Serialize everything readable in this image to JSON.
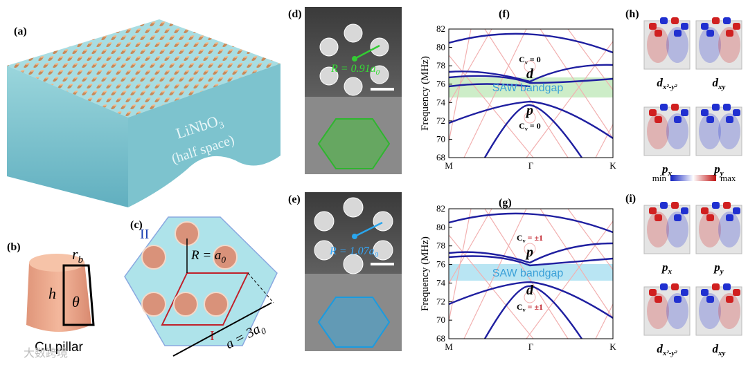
{
  "panels": {
    "a": {
      "label": "(a)",
      "material": {
        "base": "LiNbO",
        "sub": "3"
      },
      "note": "(half space)"
    },
    "b": {
      "label": "(b)",
      "radius": {
        "base": "r",
        "sub": "b"
      },
      "height": "h",
      "angle": "θ",
      "caption": "Cu pillar"
    },
    "c": {
      "label": "(c)",
      "region_outer": "II",
      "region_inner": "I",
      "radius": {
        "base": "R = a",
        "sub": "0"
      },
      "lattice": {
        "base": "a = 3a",
        "sub": "0"
      }
    },
    "d": {
      "label": "(d)",
      "radius": {
        "base": "R = 0.91a",
        "sub": "0"
      }
    },
    "e": {
      "label": "(e)",
      "radius": {
        "base": "R = 1.07a",
        "sub": "0"
      }
    },
    "f": {
      "label": "(f)",
      "y_label": "Frequency (MHz)",
      "yticks": [
        68,
        70,
        72,
        74,
        76,
        78,
        80,
        82
      ],
      "xticks": [
        "M",
        "Γ",
        "K"
      ],
      "gap": "SAW bandgap",
      "upper_band": "d",
      "lower_band": "p",
      "upper_chern": {
        "base": "C",
        "sub": "v",
        "value": " = 0"
      },
      "lower_chern": {
        "base": "C",
        "sub": "v",
        "value": " = 0"
      }
    },
    "g": {
      "label": "(g)",
      "y_label": "Frequency (MHz)",
      "yticks": [
        68,
        70,
        72,
        74,
        76,
        78,
        80,
        82
      ],
      "xticks": [
        "M",
        "Γ",
        "K"
      ],
      "gap": "SAW bandgap",
      "upper_band": "p",
      "lower_band": "d",
      "upper_chern": {
        "base": "C",
        "sub": "v",
        "value": " = ±1"
      },
      "lower_chern": {
        "base": "C",
        "sub": "v",
        "value": " = ±1"
      }
    },
    "h": {
      "label": "(h)",
      "modes": [
        {
          "base": "d",
          "sub": "x²-y²"
        },
        {
          "base": "d",
          "sub": "xy"
        },
        {
          "base": "p",
          "sub": "x"
        },
        {
          "base": "p",
          "sub": "y"
        }
      ]
    },
    "colorbar": {
      "min": "min",
      "max": "max"
    },
    "i": {
      "label": "(i)",
      "modes": [
        {
          "base": "p",
          "sub": "x"
        },
        {
          "base": "p",
          "sub": "y"
        },
        {
          "base": "d",
          "sub": "x²-y²"
        },
        {
          "base": "d",
          "sub": "xy"
        }
      ]
    }
  },
  "watermark": "大数跨境"
}
